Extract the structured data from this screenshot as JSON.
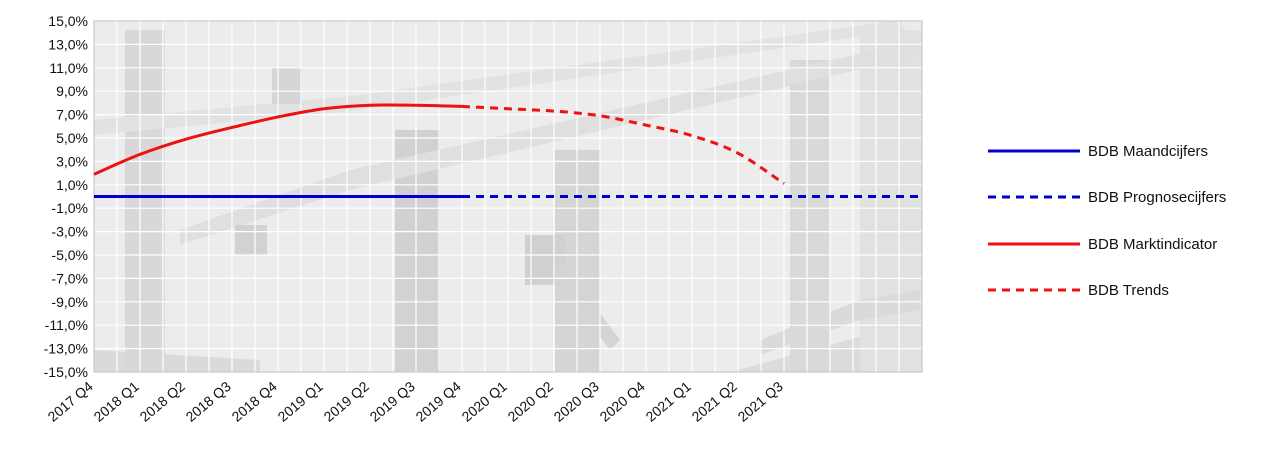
{
  "chart_data": {
    "type": "line",
    "categories": [
      "2017 Q4",
      "2018 Q1",
      "2018 Q2",
      "2018 Q3",
      "2018 Q4",
      "2019 Q1",
      "2019 Q2",
      "2019 Q3",
      "2019 Q4",
      "2020 Q1",
      "2020 Q2",
      "2020 Q3",
      "2020 Q4",
      "2021 Q1",
      "2021 Q2",
      "2021 Q3"
    ],
    "ylim": [
      -15,
      15
    ],
    "yticks": [
      "15,0%",
      "13,0%",
      "11,0%",
      "9,0%",
      "7,0%",
      "5,0%",
      "3,0%",
      "1,0%",
      "-1,0%",
      "-3,0%",
      "-5,0%",
      "-7,0%",
      "-9,0%",
      "-11,0%",
      "-13,0%",
      "-15,0%"
    ],
    "grid": true,
    "legend_position": "right",
    "series": [
      {
        "name": "BDB Maandcijfers",
        "color": "#0000cc",
        "dash": "solid",
        "x": [
          "2017 Q4",
          "2019 Q4"
        ],
        "values": [
          0.0,
          0.0
        ]
      },
      {
        "name": "BDB Prognosecijfers",
        "color": "#0000cc",
        "dash": "dashed",
        "x": [
          "2019 Q4",
          "2021 Q3"
        ],
        "values": [
          0.0,
          0.0
        ],
        "extends_to_end": true
      },
      {
        "name": "BDB Marktindicator",
        "color": "#ee1111",
        "dash": "solid",
        "x": [
          "2017 Q4",
          "2018 Q1",
          "2018 Q2",
          "2018 Q3",
          "2018 Q4",
          "2019 Q1",
          "2019 Q2",
          "2019 Q3",
          "2019 Q4"
        ],
        "values": [
          1.9,
          3.6,
          4.9,
          5.9,
          6.8,
          7.5,
          7.8,
          7.8,
          7.7
        ]
      },
      {
        "name": "BDB Trends",
        "color": "#ee1111",
        "dash": "dashed",
        "x": [
          "2019 Q4",
          "2020 Q1",
          "2020 Q2",
          "2020 Q3",
          "2020 Q4",
          "2021 Q1",
          "2021 Q2",
          "2021 Q3"
        ],
        "values": [
          7.7,
          7.5,
          7.3,
          6.9,
          6.1,
          5.2,
          3.7,
          1.1
        ]
      }
    ]
  }
}
